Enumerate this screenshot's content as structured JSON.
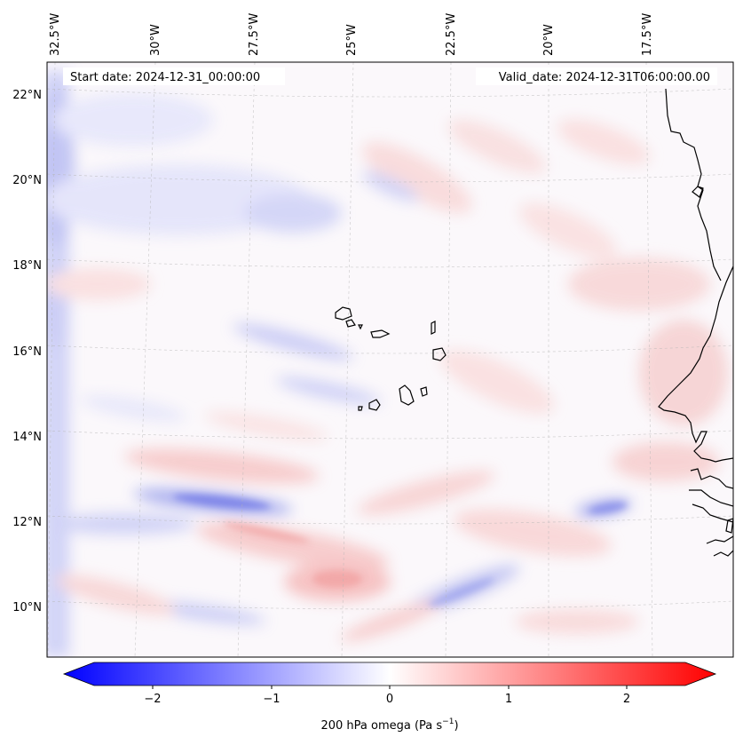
{
  "map": {
    "start_date_text": "Start date: 2024-12-31_00:00:00",
    "valid_date_text": "Valid_date: 2024-12-31T06:00:00.00",
    "lon_labels": [
      "32.5°W",
      "30°W",
      "27.5°W",
      "25°W",
      "22.5°W",
      "20°W",
      "17.5°W"
    ],
    "lat_labels": [
      "22°N",
      "20°N",
      "18°N",
      "16°N",
      "14°N",
      "12°N",
      "10°N"
    ],
    "gridlines": true,
    "field": "200 hPa omega",
    "colormap": [
      "#0000ff",
      "#ffffff",
      "#ff0000"
    ],
    "coastline_color": "#000000"
  },
  "colorbar": {
    "ticks": [
      "−2",
      "−1",
      "0",
      "1",
      "2"
    ],
    "tick_values": [
      -2,
      -1,
      0,
      1,
      2
    ],
    "range": [
      -2.5,
      2.5
    ],
    "label_main": "200 hPa omega (Pa s",
    "label_sup": "−1",
    "label_end": ")"
  }
}
